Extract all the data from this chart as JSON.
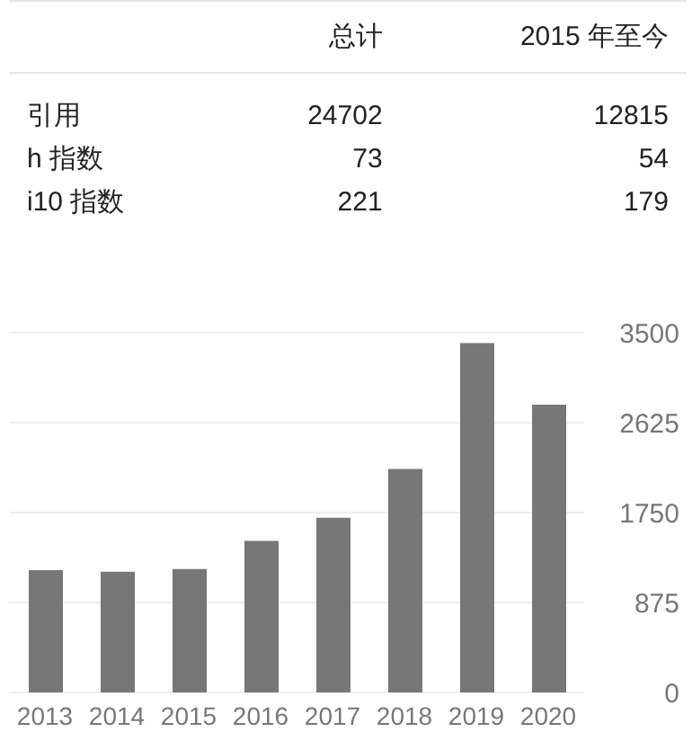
{
  "chart_data": [
    {
      "type": "other",
      "categories": [
        "总计",
        "2015 年至今"
      ],
      "y_categories": [
        "引用",
        "h 指数",
        "i10 指数"
      ],
      "cell_labels": [
        [
          "24702",
          "12815"
        ],
        [
          "73",
          "54"
        ],
        [
          "221",
          "179"
        ]
      ]
    },
    {
      "type": "bar",
      "categories": [
        "2013",
        "2014",
        "2015",
        "2016",
        "2017",
        "2018",
        "2019",
        "2020"
      ],
      "values": [
        1190,
        1175,
        1200,
        1475,
        1700,
        2175,
        3400,
        2800
      ],
      "color": "#777777",
      "ylim": [
        0,
        3500
      ],
      "yticks": [
        0,
        875,
        1750,
        2625,
        3500
      ],
      "grid": "y"
    }
  ]
}
